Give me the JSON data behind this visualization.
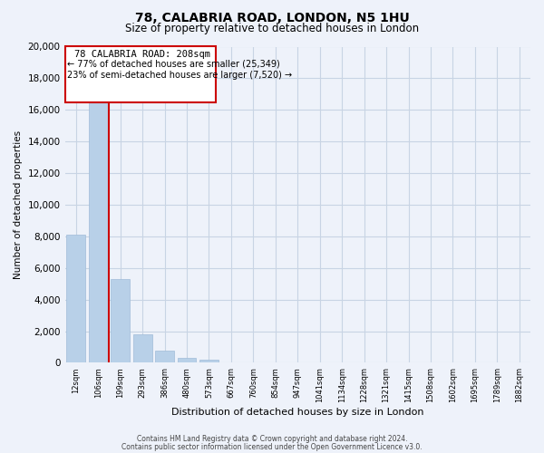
{
  "title": "78, CALABRIA ROAD, LONDON, N5 1HU",
  "subtitle": "Size of property relative to detached houses in London",
  "xlabel": "Distribution of detached houses by size in London",
  "ylabel": "Number of detached properties",
  "categories": [
    "12sqm",
    "106sqm",
    "199sqm",
    "293sqm",
    "386sqm",
    "480sqm",
    "573sqm",
    "667sqm",
    "760sqm",
    "854sqm",
    "947sqm",
    "1041sqm",
    "1134sqm",
    "1228sqm",
    "1321sqm",
    "1415sqm",
    "1508sqm",
    "1602sqm",
    "1695sqm",
    "1789sqm",
    "1882sqm"
  ],
  "bar_values": [
    8100,
    16500,
    5300,
    1800,
    750,
    300,
    200,
    0,
    0,
    0,
    0,
    0,
    0,
    0,
    0,
    0,
    0,
    0,
    0,
    0,
    0
  ],
  "bar_color": "#b8d0e8",
  "bar_edge_color": "#a0bcd8",
  "marker_label": "78 CALABRIA ROAD: 208sqm",
  "annotation_line1": "← 77% of detached houses are smaller (25,349)",
  "annotation_line2": "23% of semi-detached houses are larger (7,520) →",
  "box_color": "#ffffff",
  "box_edge_color": "#cc0000",
  "red_line_x": 1.5,
  "ylim": [
    0,
    20000
  ],
  "yticks": [
    0,
    2000,
    4000,
    6000,
    8000,
    10000,
    12000,
    14000,
    16000,
    18000,
    20000
  ],
  "footer1": "Contains HM Land Registry data © Crown copyright and database right 2024.",
  "footer2": "Contains public sector information licensed under the Open Government Licence v3.0.",
  "title_fontsize": 10,
  "subtitle_fontsize": 8.5,
  "grid_color": "#c8d4e4",
  "background_color": "#eef2fa"
}
